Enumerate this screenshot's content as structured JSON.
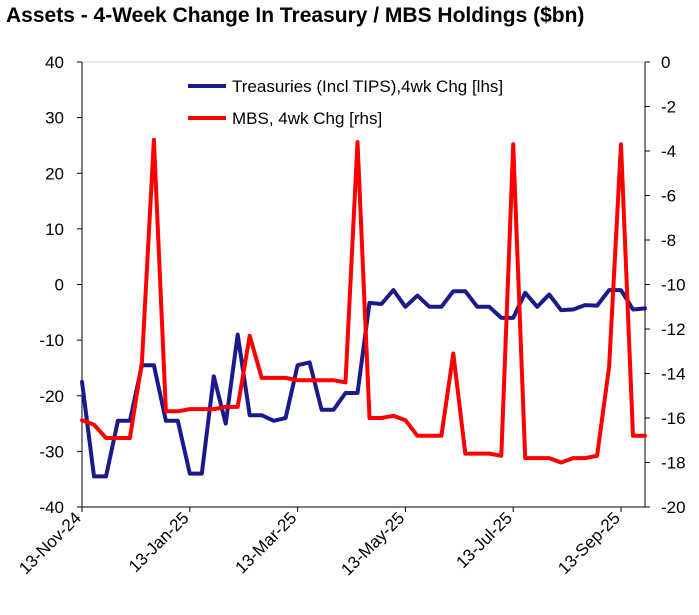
{
  "title": "Assets - 4-Week Change In Treasury / MBS Holdings ($bn)",
  "chart_data": {
    "type": "line",
    "title": "Assets - 4-Week Change In Treasury / MBS Holdings ($bn)",
    "x_tick_labels": [
      "13-Nov-24",
      "13-Jan-25",
      "13-Mar-25",
      "13-May-25",
      "13-Jul-25",
      "13-Sep-25"
    ],
    "x_tick_indices": [
      0,
      9,
      18,
      27,
      36,
      45
    ],
    "left_axis": {
      "ylim": [
        -40,
        40
      ],
      "ticks": [
        "40",
        "30",
        "20",
        "10",
        "0",
        "-10",
        "-20",
        "-30",
        "-40"
      ]
    },
    "right_axis": {
      "ylim": [
        -20,
        0
      ],
      "ticks": [
        "0",
        "-2",
        "-4",
        "-6",
        "-8",
        "-10",
        "-12",
        "-14",
        "-16",
        "-18",
        "-20"
      ]
    },
    "grid": false,
    "legend_position": "top-center",
    "series": [
      {
        "name": "Treasuries (Incl TIPS),4wk Chg [lhs]",
        "axis": "left",
        "color": "#1a1a8c",
        "values": [
          -17.5,
          -34.5,
          -34.5,
          -24.5,
          -24.5,
          -14.5,
          -14.5,
          -24.5,
          -24.5,
          -34,
          -34,
          -16.5,
          -25,
          -9,
          -23.5,
          -23.5,
          -24.5,
          -24,
          -14.5,
          -14,
          -22.5,
          -22.5,
          -19.5,
          -19.5,
          -3.3,
          -3.5,
          -1,
          -4,
          -2,
          -4,
          -4,
          -1.2,
          -1.2,
          -4,
          -4,
          -6,
          -6,
          -1.5,
          -4,
          -1.8,
          -4.6,
          -4.5,
          -3.7,
          -3.8,
          -1,
          -1,
          -4.5,
          -4.3
        ]
      },
      {
        "name": "MBS, 4wk Chg [rhs]",
        "axis": "right",
        "color": "#ff0000",
        "values": [
          -16.1,
          -16.3,
          -16.9,
          -16.9,
          -16.9,
          -13.5,
          -3.5,
          -15.7,
          -15.7,
          -15.6,
          -15.6,
          -15.6,
          -15.5,
          -15.5,
          -12.3,
          -14.2,
          -14.2,
          -14.2,
          -14.3,
          -14.3,
          -14.3,
          -14.3,
          -14.4,
          -3.6,
          -16,
          -16,
          -15.9,
          -16.1,
          -16.8,
          -16.8,
          -16.8,
          -13.1,
          -17.6,
          -17.6,
          -17.6,
          -17.7,
          -3.7,
          -17.8,
          -17.8,
          -17.8,
          -18,
          -17.8,
          -17.8,
          -17.7,
          -13.7,
          -3.7,
          -16.8,
          -16.8
        ]
      }
    ]
  }
}
